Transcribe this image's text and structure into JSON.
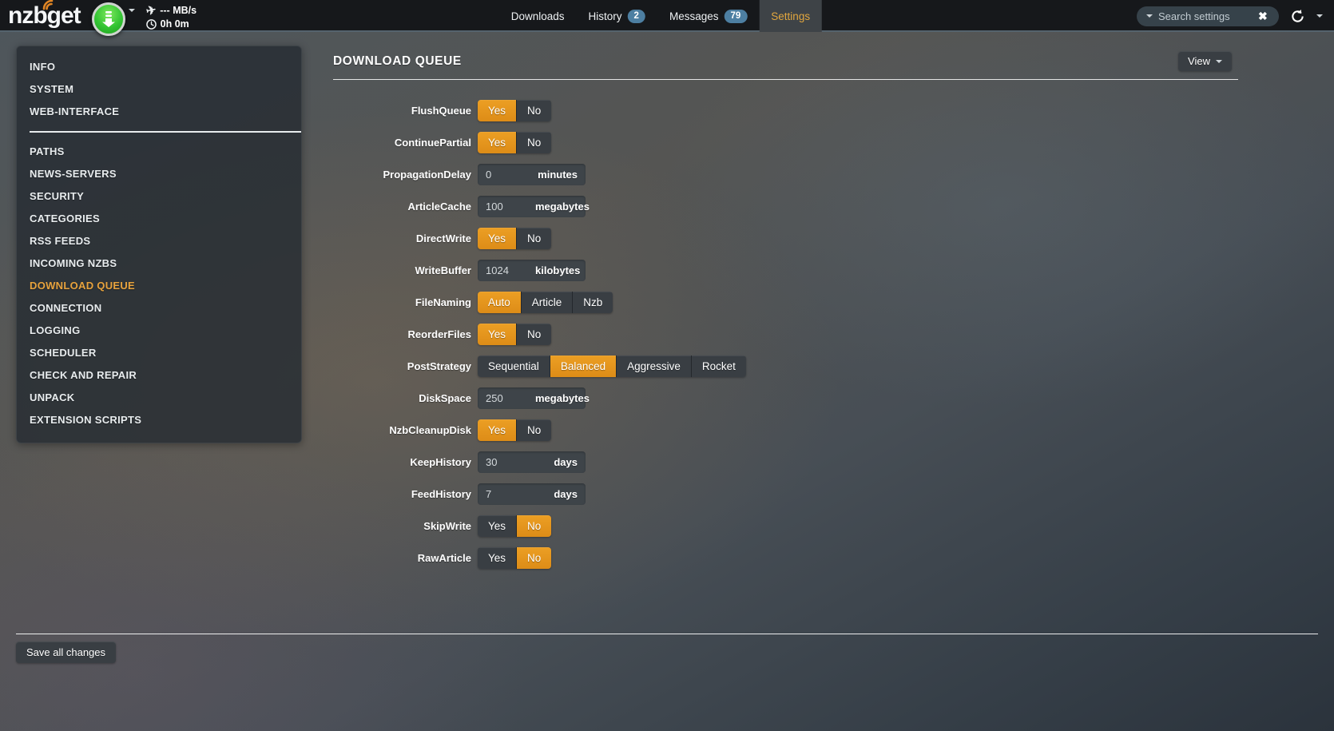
{
  "topbar": {
    "logo": "nzbget",
    "speed": "--- MB/s",
    "time": "0h 0m",
    "tabs": [
      {
        "label": "Downloads",
        "badge": null,
        "active": false
      },
      {
        "label": "History",
        "badge": "2",
        "active": false
      },
      {
        "label": "Messages",
        "badge": "79",
        "active": false
      },
      {
        "label": "Settings",
        "badge": null,
        "active": true
      }
    ],
    "search": {
      "placeholder": "Search settings"
    }
  },
  "icons": {
    "plane": "✈",
    "close": "✖"
  },
  "sidebar": {
    "active": "DOWNLOAD QUEUE",
    "groups": [
      {
        "items": [
          "INFO",
          "SYSTEM",
          "WEB-INTERFACE"
        ]
      },
      {
        "items": [
          "PATHS",
          "NEWS-SERVERS",
          "SECURITY",
          "CATEGORIES",
          "RSS FEEDS",
          "INCOMING NZBS",
          "DOWNLOAD QUEUE",
          "CONNECTION",
          "LOGGING",
          "SCHEDULER",
          "CHECK AND REPAIR",
          "UNPACK",
          "EXTENSION SCRIPTS"
        ]
      }
    ]
  },
  "main": {
    "title": "DOWNLOAD QUEUE",
    "view_button": "View",
    "save_button": "Save all changes",
    "rows": [
      {
        "name": "FlushQueue",
        "type": "toggle",
        "options": [
          "Yes",
          "No"
        ],
        "selected": 0
      },
      {
        "name": "ContinuePartial",
        "type": "toggle",
        "options": [
          "Yes",
          "No"
        ],
        "selected": 0
      },
      {
        "name": "PropagationDelay",
        "type": "input",
        "value": "0",
        "unit": "minutes"
      },
      {
        "name": "ArticleCache",
        "type": "input",
        "value": "100",
        "unit": "megabytes"
      },
      {
        "name": "DirectWrite",
        "type": "toggle",
        "options": [
          "Yes",
          "No"
        ],
        "selected": 0
      },
      {
        "name": "WriteBuffer",
        "type": "input",
        "value": "1024",
        "unit": "kilobytes"
      },
      {
        "name": "FileNaming",
        "type": "toggle",
        "options": [
          "Auto",
          "Article",
          "Nzb"
        ],
        "selected": 0
      },
      {
        "name": "ReorderFiles",
        "type": "toggle",
        "options": [
          "Yes",
          "No"
        ],
        "selected": 0
      },
      {
        "name": "PostStrategy",
        "type": "toggle",
        "options": [
          "Sequential",
          "Balanced",
          "Aggressive",
          "Rocket"
        ],
        "selected": 1
      },
      {
        "name": "DiskSpace",
        "type": "input",
        "value": "250",
        "unit": "megabytes"
      },
      {
        "name": "NzbCleanupDisk",
        "type": "toggle",
        "options": [
          "Yes",
          "No"
        ],
        "selected": 0
      },
      {
        "name": "KeepHistory",
        "type": "input",
        "value": "30",
        "unit": "days"
      },
      {
        "name": "FeedHistory",
        "type": "input",
        "value": "7",
        "unit": "days"
      },
      {
        "name": "SkipWrite",
        "type": "toggle",
        "options": [
          "Yes",
          "No"
        ],
        "selected": 1
      },
      {
        "name": "RawArticle",
        "type": "toggle",
        "options": [
          "Yes",
          "No"
        ],
        "selected": 1
      }
    ]
  },
  "colors": {
    "accent_orange": "#e5941f",
    "active_link_orange": "#e8a33d",
    "badge_blue": "#4d7fa2",
    "button_dark": "#393e43",
    "download_green": "#33c433"
  }
}
